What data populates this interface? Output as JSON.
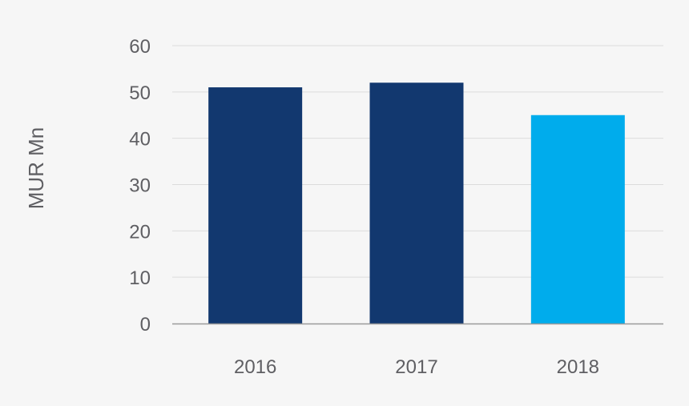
{
  "chart_data": {
    "type": "bar",
    "categories": [
      "2016",
      "2017",
      "2018"
    ],
    "values": [
      51,
      52,
      45
    ],
    "bar_colors": [
      "#12386f",
      "#12386f",
      "#00acec"
    ],
    "ylabel": "MUR Mn",
    "xlabel": "",
    "ylim": [
      0,
      60
    ],
    "yticks": [
      0,
      10,
      20,
      30,
      40,
      50,
      60
    ],
    "grid": true,
    "legend": "none"
  }
}
